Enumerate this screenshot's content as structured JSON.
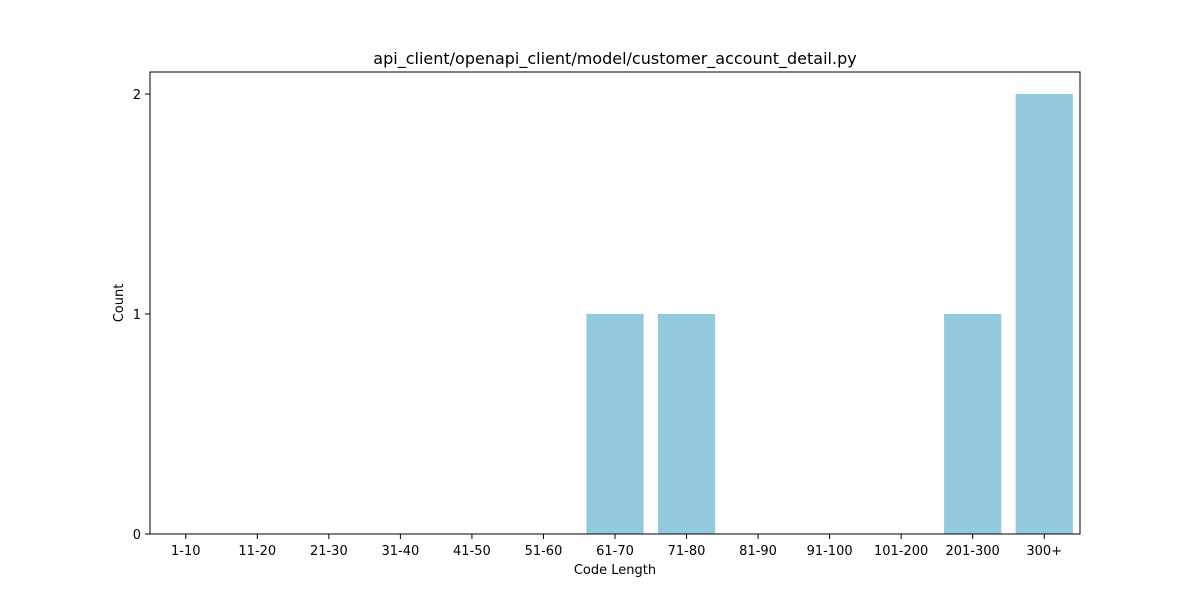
{
  "chart_data": {
    "type": "bar",
    "title": "api_client/openapi_client/model/customer_account_detail.py",
    "xlabel": "Code Length",
    "ylabel": "Count",
    "categories": [
      "1-10",
      "11-20",
      "21-30",
      "31-40",
      "41-50",
      "51-60",
      "61-70",
      "71-80",
      "81-90",
      "91-100",
      "101-200",
      "201-300",
      "300+"
    ],
    "values": [
      0,
      0,
      0,
      0,
      0,
      0,
      1,
      1,
      0,
      0,
      0,
      1,
      2
    ],
    "ylim": [
      0,
      2.1
    ],
    "yticks": [
      "0",
      "1",
      "2"
    ],
    "bar_color": "#92c9de",
    "grid": false,
    "legend": "none"
  }
}
